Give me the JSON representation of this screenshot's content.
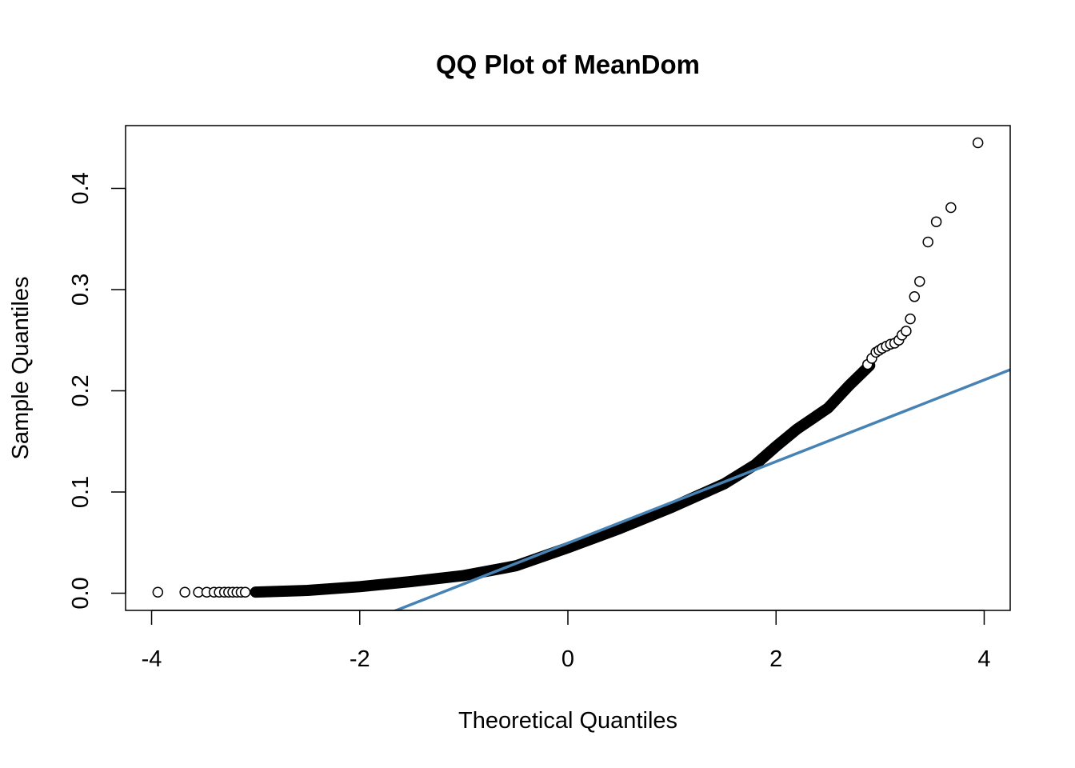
{
  "chart_data": {
    "type": "scatter",
    "title": "QQ Plot of MeanDom",
    "xlabel": "Theoretical Quantiles",
    "ylabel": "Sample Quantiles",
    "xlim": [
      -4.25,
      4.25
    ],
    "ylim": [
      -0.017,
      0.462
    ],
    "x_ticks": [
      -4,
      -2,
      0,
      2,
      4
    ],
    "x_tick_labels": [
      "-4",
      "-2",
      "0",
      "2",
      "4"
    ],
    "y_ticks": [
      0.0,
      0.1,
      0.2,
      0.3,
      0.4
    ],
    "y_tick_labels": [
      "0.0",
      "0.1",
      "0.2",
      "0.3",
      "0.4"
    ],
    "grid": false,
    "point_color": "#000000",
    "line_color": "#4682B4",
    "reference_line": {
      "intercept": 0.0495,
      "slope": 0.0403
    },
    "curve_points": [
      [
        -3.0,
        0.0011
      ],
      [
        -2.5,
        0.0028
      ],
      [
        -2.0,
        0.0065
      ],
      [
        -1.5,
        0.0115
      ],
      [
        -1.0,
        0.0175
      ],
      [
        -0.5,
        0.027
      ],
      [
        0.0,
        0.045
      ],
      [
        0.5,
        0.064
      ],
      [
        1.0,
        0.085
      ],
      [
        1.5,
        0.108
      ],
      [
        1.8,
        0.127
      ],
      [
        2.0,
        0.145
      ],
      [
        2.2,
        0.162
      ],
      [
        2.5,
        0.183
      ],
      [
        2.7,
        0.205
      ],
      [
        2.9,
        0.225
      ]
    ],
    "points": [
      [
        -3.94,
        0.001
      ],
      [
        -3.68,
        0.001
      ],
      [
        -3.55,
        0.001
      ],
      [
        -3.47,
        0.001
      ],
      [
        -3.4,
        0.001
      ],
      [
        -3.35,
        0.001
      ],
      [
        -3.3,
        0.001
      ],
      [
        -3.26,
        0.001
      ],
      [
        -3.22,
        0.001
      ],
      [
        -3.18,
        0.001
      ],
      [
        -3.14,
        0.001
      ],
      [
        -3.1,
        0.001
      ],
      [
        2.88,
        0.226
      ],
      [
        2.92,
        0.232
      ],
      [
        2.96,
        0.238
      ],
      [
        2.99,
        0.24
      ],
      [
        3.02,
        0.242
      ],
      [
        3.06,
        0.244
      ],
      [
        3.1,
        0.246
      ],
      [
        3.14,
        0.247
      ],
      [
        3.18,
        0.25
      ],
      [
        3.21,
        0.255
      ],
      [
        3.25,
        0.259
      ],
      [
        3.29,
        0.271
      ],
      [
        3.33,
        0.293
      ],
      [
        3.38,
        0.308
      ],
      [
        3.46,
        0.347
      ],
      [
        3.54,
        0.367
      ],
      [
        3.68,
        0.381
      ],
      [
        3.94,
        0.445
      ]
    ]
  }
}
